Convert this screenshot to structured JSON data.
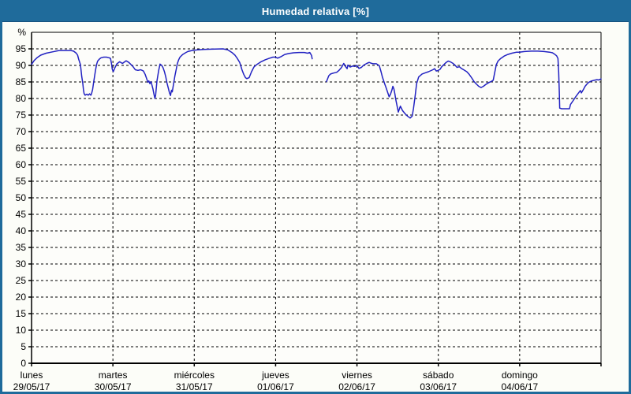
{
  "window": {
    "title": "Humedad relativa [%]"
  },
  "colors": {
    "titlebar_bg": "#1f6b9b",
    "window_border": "#1f6b9b",
    "background": "#fcfdf8",
    "plot_background": "#fdfdfa",
    "line": "#2222c2",
    "grid": "#000000",
    "axis": "#000000",
    "text": "#000000",
    "title_text": "#ffffff"
  },
  "chart_data": {
    "type": "line",
    "title": "Humedad relativa [%]",
    "ylabel": "%",
    "xlabel": "",
    "ylim": [
      0,
      100
    ],
    "y_ticks": [
      0,
      5,
      10,
      15,
      20,
      25,
      30,
      35,
      40,
      45,
      50,
      55,
      60,
      65,
      70,
      75,
      80,
      85,
      90,
      95
    ],
    "y_unit_label": "%",
    "grid": "dashed",
    "legend_position": "none",
    "days_total": 7,
    "hours_per_day": 24,
    "x_hours_total": 168,
    "x_days": [
      {
        "name": "lunes",
        "date": "29/05/17"
      },
      {
        "name": "martes",
        "date": "30/05/17"
      },
      {
        "name": "miércoles",
        "date": "31/05/17"
      },
      {
        "name": "jueves",
        "date": "01/06/17"
      },
      {
        "name": "viernes",
        "date": "02/06/17"
      },
      {
        "name": "sábado",
        "date": "03/06/17"
      },
      {
        "name": "domingo",
        "date": "04/06/17"
      }
    ],
    "series": [
      {
        "name": "Humedad relativa",
        "unit": "%",
        "note": "x in hours from Monday 00:00; gap (no data) between hour 82.8 and 87.0 on Thursday evening",
        "segments": [
          [
            [
              0,
              90.3
            ],
            [
              0.8,
              91.5
            ],
            [
              1.6,
              92.3
            ],
            [
              2.7,
              93.1
            ],
            [
              4.3,
              93.7
            ],
            [
              6.2,
              94.1
            ],
            [
              8.1,
              94.5
            ],
            [
              10.1,
              94.5
            ],
            [
              11.6,
              94.5
            ],
            [
              12.4,
              94.3
            ],
            [
              13.2,
              93.7
            ],
            [
              13.6,
              93.1
            ],
            [
              13.9,
              91.9
            ],
            [
              14.4,
              90.3
            ],
            [
              14.6,
              88.7
            ],
            [
              14.8,
              86.7
            ],
            [
              15.1,
              84.7
            ],
            [
              15.3,
              82.7
            ],
            [
              15.5,
              81.5
            ],
            [
              15.8,
              81.0
            ],
            [
              16.3,
              81.3
            ],
            [
              16.7,
              81.0
            ],
            [
              17.1,
              81.4
            ],
            [
              17.5,
              81.0
            ],
            [
              17.7,
              81.5
            ],
            [
              18.0,
              82.7
            ],
            [
              18.3,
              84.7
            ],
            [
              18.6,
              86.7
            ],
            [
              18.9,
              88.7
            ],
            [
              19.2,
              90.3
            ],
            [
              19.5,
              91.3
            ],
            [
              20.0,
              91.9
            ],
            [
              20.5,
              92.3
            ],
            [
              21.3,
              92.5
            ],
            [
              22.1,
              92.5
            ],
            [
              22.9,
              92.3
            ],
            [
              23.3,
              92.1
            ],
            [
              23.6,
              90.5
            ],
            [
              23.8,
              88.9
            ],
            [
              24.1,
              88.1
            ],
            [
              24.6,
              89.3
            ],
            [
              25.2,
              90.5
            ],
            [
              26.0,
              91.1
            ],
            [
              26.8,
              90.6
            ],
            [
              27.9,
              91.4
            ],
            [
              28.7,
              90.9
            ],
            [
              29.9,
              89.7
            ],
            [
              30.6,
              88.7
            ],
            [
              31.4,
              88.5
            ],
            [
              32.2,
              88.7
            ],
            [
              33.0,
              88.3
            ],
            [
              33.5,
              87.3
            ],
            [
              34.0,
              85.9
            ],
            [
              34.3,
              84.9
            ],
            [
              34.6,
              85.3
            ],
            [
              34.9,
              84.5
            ],
            [
              35.2,
              85.1
            ],
            [
              35.5,
              84.1
            ],
            [
              35.8,
              82.9
            ],
            [
              36.1,
              81.4
            ],
            [
              36.4,
              80.0
            ],
            [
              36.6,
              81.0
            ],
            [
              37.0,
              85.3
            ],
            [
              37.5,
              88.5
            ],
            [
              37.9,
              90.4
            ],
            [
              38.4,
              90.0
            ],
            [
              38.8,
              89.3
            ],
            [
              39.2,
              88.1
            ],
            [
              39.6,
              86.5
            ],
            [
              39.9,
              84.9
            ],
            [
              40.3,
              83.3
            ],
            [
              40.7,
              81.7
            ],
            [
              41.0,
              80.9
            ],
            [
              41.1,
              81.5
            ],
            [
              41.3,
              82.5
            ],
            [
              41.5,
              82.0
            ],
            [
              41.9,
              84.5
            ],
            [
              42.3,
              86.9
            ],
            [
              42.7,
              88.9
            ],
            [
              43.0,
              90.5
            ],
            [
              43.4,
              91.7
            ],
            [
              43.8,
              92.5
            ],
            [
              44.6,
              93.3
            ],
            [
              45.4,
              93.8
            ],
            [
              46.1,
              94.2
            ],
            [
              47.3,
              94.5
            ],
            [
              48.9,
              94.7
            ],
            [
              50.7,
              94.8
            ],
            [
              53.0,
              94.9
            ],
            [
              56.5,
              95.0
            ],
            [
              57.9,
              94.7
            ],
            [
              59.1,
              93.9
            ],
            [
              60.0,
              93.1
            ],
            [
              60.7,
              92.1
            ],
            [
              61.4,
              90.9
            ],
            [
              62.1,
              88.6
            ],
            [
              62.6,
              87.3
            ],
            [
              63.1,
              86.3
            ],
            [
              63.5,
              86.0
            ],
            [
              64.2,
              86.3
            ],
            [
              64.9,
              88.1
            ],
            [
              65.6,
              89.5
            ],
            [
              66.5,
              90.3
            ],
            [
              67.7,
              91.1
            ],
            [
              68.9,
              91.7
            ],
            [
              70.0,
              92.1
            ],
            [
              71.2,
              92.5
            ],
            [
              71.9,
              92.5
            ],
            [
              72.6,
              92.2
            ],
            [
              73.5,
              92.6
            ],
            [
              74.7,
              93.3
            ],
            [
              75.9,
              93.6
            ],
            [
              77.3,
              93.8
            ],
            [
              78.9,
              93.9
            ],
            [
              80.5,
              93.9
            ],
            [
              81.4,
              93.7
            ],
            [
              82.1,
              93.9
            ],
            [
              82.6,
              93.0
            ],
            [
              82.8,
              92.0
            ]
          ],
          [
            [
              87.0,
              85.1
            ],
            [
              87.7,
              86.9
            ],
            [
              88.2,
              87.4
            ],
            [
              89.1,
              87.7
            ],
            [
              90.0,
              87.9
            ],
            [
              90.7,
              88.5
            ],
            [
              91.4,
              89.3
            ],
            [
              92.1,
              90.6
            ],
            [
              92.6,
              89.7
            ],
            [
              93.1,
              89.0
            ],
            [
              93.3,
              90.1
            ],
            [
              94.0,
              89.5
            ],
            [
              94.7,
              89.8
            ],
            [
              95.4,
              89.7
            ],
            [
              96.0,
              90.0
            ],
            [
              96.6,
              89.1
            ],
            [
              97.3,
              89.4
            ],
            [
              98.0,
              90.1
            ],
            [
              98.9,
              90.6
            ],
            [
              99.6,
              90.9
            ],
            [
              100.1,
              90.7
            ],
            [
              100.7,
              90.5
            ],
            [
              101.7,
              90.5
            ],
            [
              102.6,
              89.9
            ],
            [
              103.1,
              88.1
            ],
            [
              103.5,
              86.5
            ],
            [
              103.9,
              85.3
            ],
            [
              104.3,
              84.1
            ],
            [
              104.7,
              82.9
            ],
            [
              105.1,
              81.7
            ],
            [
              105.5,
              80.5
            ],
            [
              105.9,
              81.3
            ],
            [
              106.3,
              82.5
            ],
            [
              106.6,
              83.7
            ],
            [
              106.9,
              82.9
            ],
            [
              107.2,
              81.3
            ],
            [
              107.4,
              79.9
            ],
            [
              107.8,
              77.9
            ],
            [
              108.2,
              75.9
            ],
            [
              108.6,
              77.1
            ],
            [
              108.8,
              77.7
            ],
            [
              109.4,
              76.4
            ],
            [
              110.1,
              75.5
            ],
            [
              110.9,
              74.7
            ],
            [
              111.7,
              74.1
            ],
            [
              112.3,
              74.7
            ],
            [
              112.7,
              77.1
            ],
            [
              113.2,
              81.1
            ],
            [
              113.6,
              84.5
            ],
            [
              114.2,
              86.5
            ],
            [
              115.2,
              87.4
            ],
            [
              116.3,
              87.8
            ],
            [
              117.1,
              88.1
            ],
            [
              118.4,
              88.7
            ],
            [
              118.9,
              89.0
            ],
            [
              119.4,
              88.3
            ],
            [
              119.8,
              88.4
            ],
            [
              120.5,
              88.8
            ],
            [
              121.0,
              89.6
            ],
            [
              121.6,
              90.2
            ],
            [
              122.3,
              90.9
            ],
            [
              122.9,
              91.3
            ],
            [
              123.5,
              91.1
            ],
            [
              124.2,
              90.7
            ],
            [
              124.9,
              90.1
            ],
            [
              125.5,
              89.4
            ],
            [
              126.2,
              89.6
            ],
            [
              126.8,
              89.1
            ],
            [
              127.6,
              88.6
            ],
            [
              128.4,
              88.1
            ],
            [
              129.1,
              87.3
            ],
            [
              129.8,
              86.3
            ],
            [
              130.5,
              85.2
            ],
            [
              131.2,
              84.4
            ],
            [
              131.9,
              83.7
            ],
            [
              132.6,
              83.3
            ],
            [
              133.3,
              83.7
            ],
            [
              134.1,
              84.3
            ],
            [
              134.9,
              84.8
            ],
            [
              135.7,
              85.2
            ],
            [
              136.2,
              85.5
            ],
            [
              136.6,
              87.7
            ],
            [
              137.1,
              90.2
            ],
            [
              137.6,
              91.3
            ],
            [
              138.4,
              92.1
            ],
            [
              139.4,
              92.8
            ],
            [
              140.5,
              93.3
            ],
            [
              141.7,
              93.7
            ],
            [
              143.1,
              94.0
            ],
            [
              143.9,
              94.0
            ],
            [
              145.4,
              94.2
            ],
            [
              147.4,
              94.3
            ],
            [
              149.4,
              94.3
            ],
            [
              151.2,
              94.2
            ],
            [
              152.8,
              94.0
            ],
            [
              153.7,
              93.8
            ],
            [
              154.3,
              93.4
            ],
            [
              154.9,
              92.9
            ],
            [
              155.3,
              92.1
            ],
            [
              155.5,
              88.0
            ],
            [
              155.7,
              82.0
            ],
            [
              155.8,
              77.1
            ],
            [
              156.4,
              76.9
            ],
            [
              157.5,
              76.9
            ],
            [
              158.7,
              76.9
            ],
            [
              159.0,
              78.2
            ],
            [
              159.8,
              79.4
            ],
            [
              160.5,
              80.5
            ],
            [
              161.3,
              81.6
            ],
            [
              161.9,
              82.4
            ],
            [
              162.2,
              81.7
            ],
            [
              162.9,
              82.9
            ],
            [
              163.3,
              83.7
            ],
            [
              163.8,
              84.3
            ],
            [
              164.4,
              84.9
            ],
            [
              165.2,
              85.3
            ],
            [
              166.0,
              85.5
            ],
            [
              166.8,
              85.7
            ],
            [
              167.3,
              85.6
            ],
            [
              168.0,
              85.9
            ]
          ]
        ]
      }
    ]
  }
}
